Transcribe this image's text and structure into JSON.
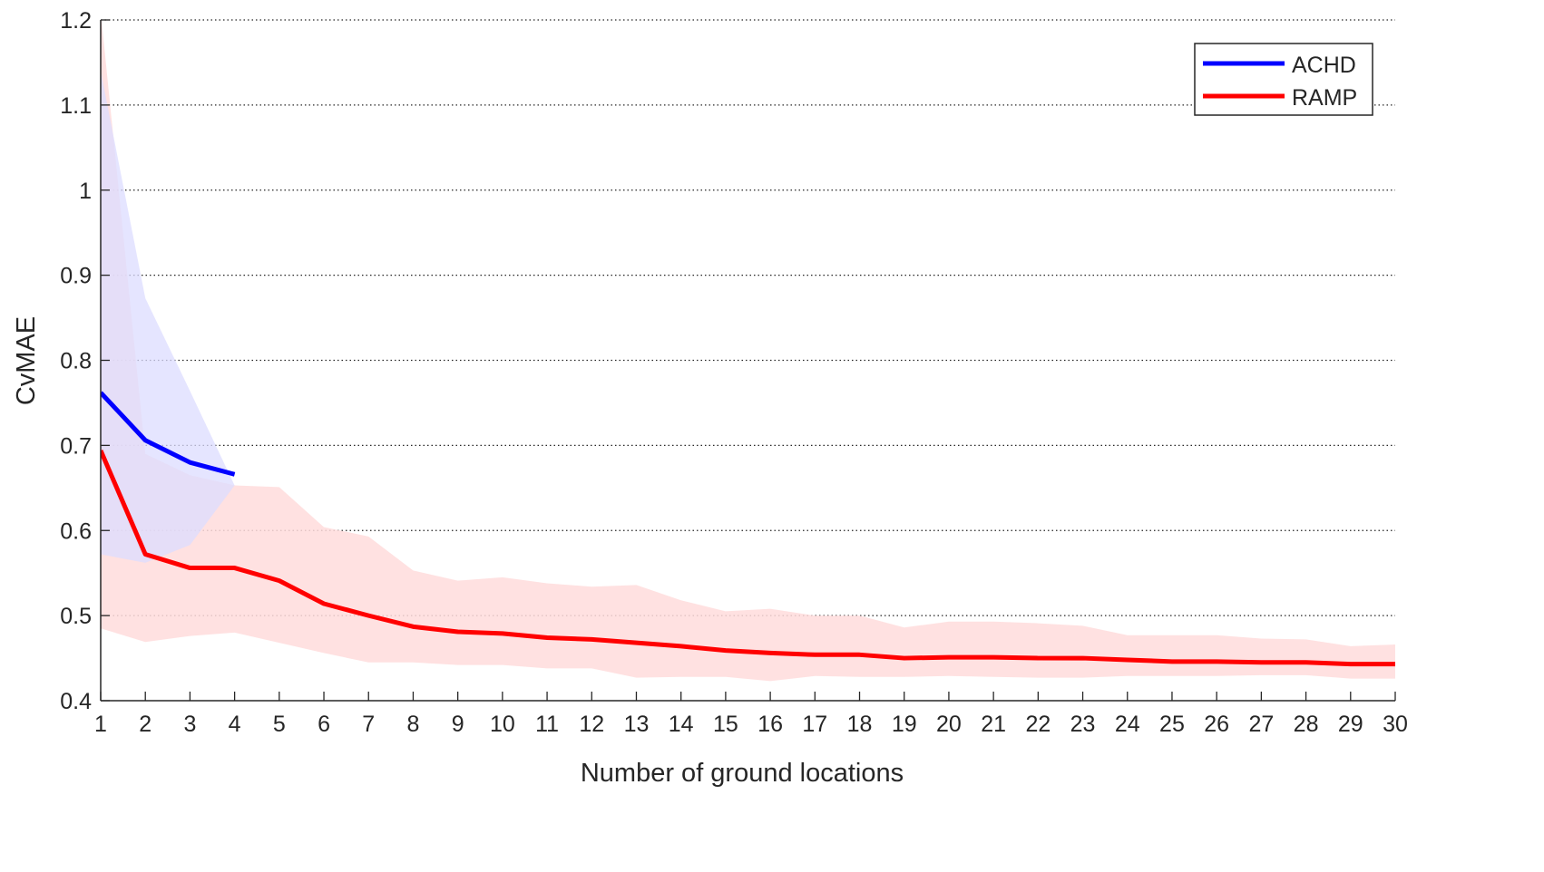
{
  "chart_data": {
    "type": "line",
    "title": "",
    "xlabel": "Number of ground locations",
    "ylabel": "CvMAE",
    "xlim": [
      1,
      30
    ],
    "ylim": [
      0.4,
      1.2
    ],
    "xticks": [
      1,
      2,
      3,
      4,
      5,
      6,
      7,
      8,
      9,
      10,
      11,
      12,
      13,
      14,
      15,
      16,
      17,
      18,
      19,
      20,
      21,
      22,
      23,
      24,
      25,
      26,
      27,
      28,
      29,
      30
    ],
    "yticks": [
      0.4,
      0.5,
      0.6,
      0.7,
      0.8,
      0.9,
      1,
      1.1,
      1.2
    ],
    "ytick_labels": [
      "0.4",
      "0.5",
      "0.6",
      "0.7",
      "0.8",
      "0.9",
      "1",
      "1.1",
      "1.2"
    ],
    "grid": "horizontal dotted",
    "legend_position": "top-right",
    "series": [
      {
        "name": "ACHD",
        "color": "#0000ff",
        "band_color": "#dcdcff",
        "x": [
          1,
          2,
          3,
          4
        ],
        "values": [
          0.762,
          0.706,
          0.68,
          0.666
        ],
        "upper": [
          1.14,
          0.873,
          0.764,
          0.653
        ],
        "lower": [
          0.572,
          0.562,
          0.583,
          0.653
        ]
      },
      {
        "name": "RAMP",
        "color": "#ff0000",
        "band_color": "#ffdcdc",
        "x": [
          1,
          2,
          3,
          4,
          5,
          6,
          7,
          8,
          9,
          10,
          11,
          12,
          13,
          14,
          15,
          16,
          17,
          18,
          19,
          20,
          21,
          22,
          23,
          24,
          25,
          26,
          27,
          28,
          29,
          30
        ],
        "values": [
          0.694,
          0.572,
          0.556,
          0.556,
          0.541,
          0.514,
          0.5,
          0.487,
          0.481,
          0.479,
          0.474,
          0.472,
          0.468,
          0.464,
          0.459,
          0.456,
          0.454,
          0.454,
          0.45,
          0.451,
          0.451,
          0.45,
          0.45,
          0.448,
          0.446,
          0.446,
          0.445,
          0.445,
          0.443,
          0.443
        ],
        "upper": [
          1.21,
          0.69,
          0.665,
          0.653,
          0.651,
          0.604,
          0.593,
          0.553,
          0.541,
          0.545,
          0.538,
          0.534,
          0.536,
          0.518,
          0.505,
          0.508,
          0.5,
          0.5,
          0.486,
          0.493,
          0.493,
          0.491,
          0.488,
          0.477,
          0.477,
          0.477,
          0.473,
          0.472,
          0.464,
          0.466
        ],
        "lower": [
          0.485,
          0.469,
          0.476,
          0.48,
          0.468,
          0.456,
          0.445,
          0.445,
          0.442,
          0.442,
          0.438,
          0.438,
          0.427,
          0.428,
          0.428,
          0.423,
          0.429,
          0.428,
          0.428,
          0.429,
          0.428,
          0.427,
          0.427,
          0.429,
          0.429,
          0.429,
          0.43,
          0.43,
          0.426,
          0.426
        ]
      }
    ]
  }
}
